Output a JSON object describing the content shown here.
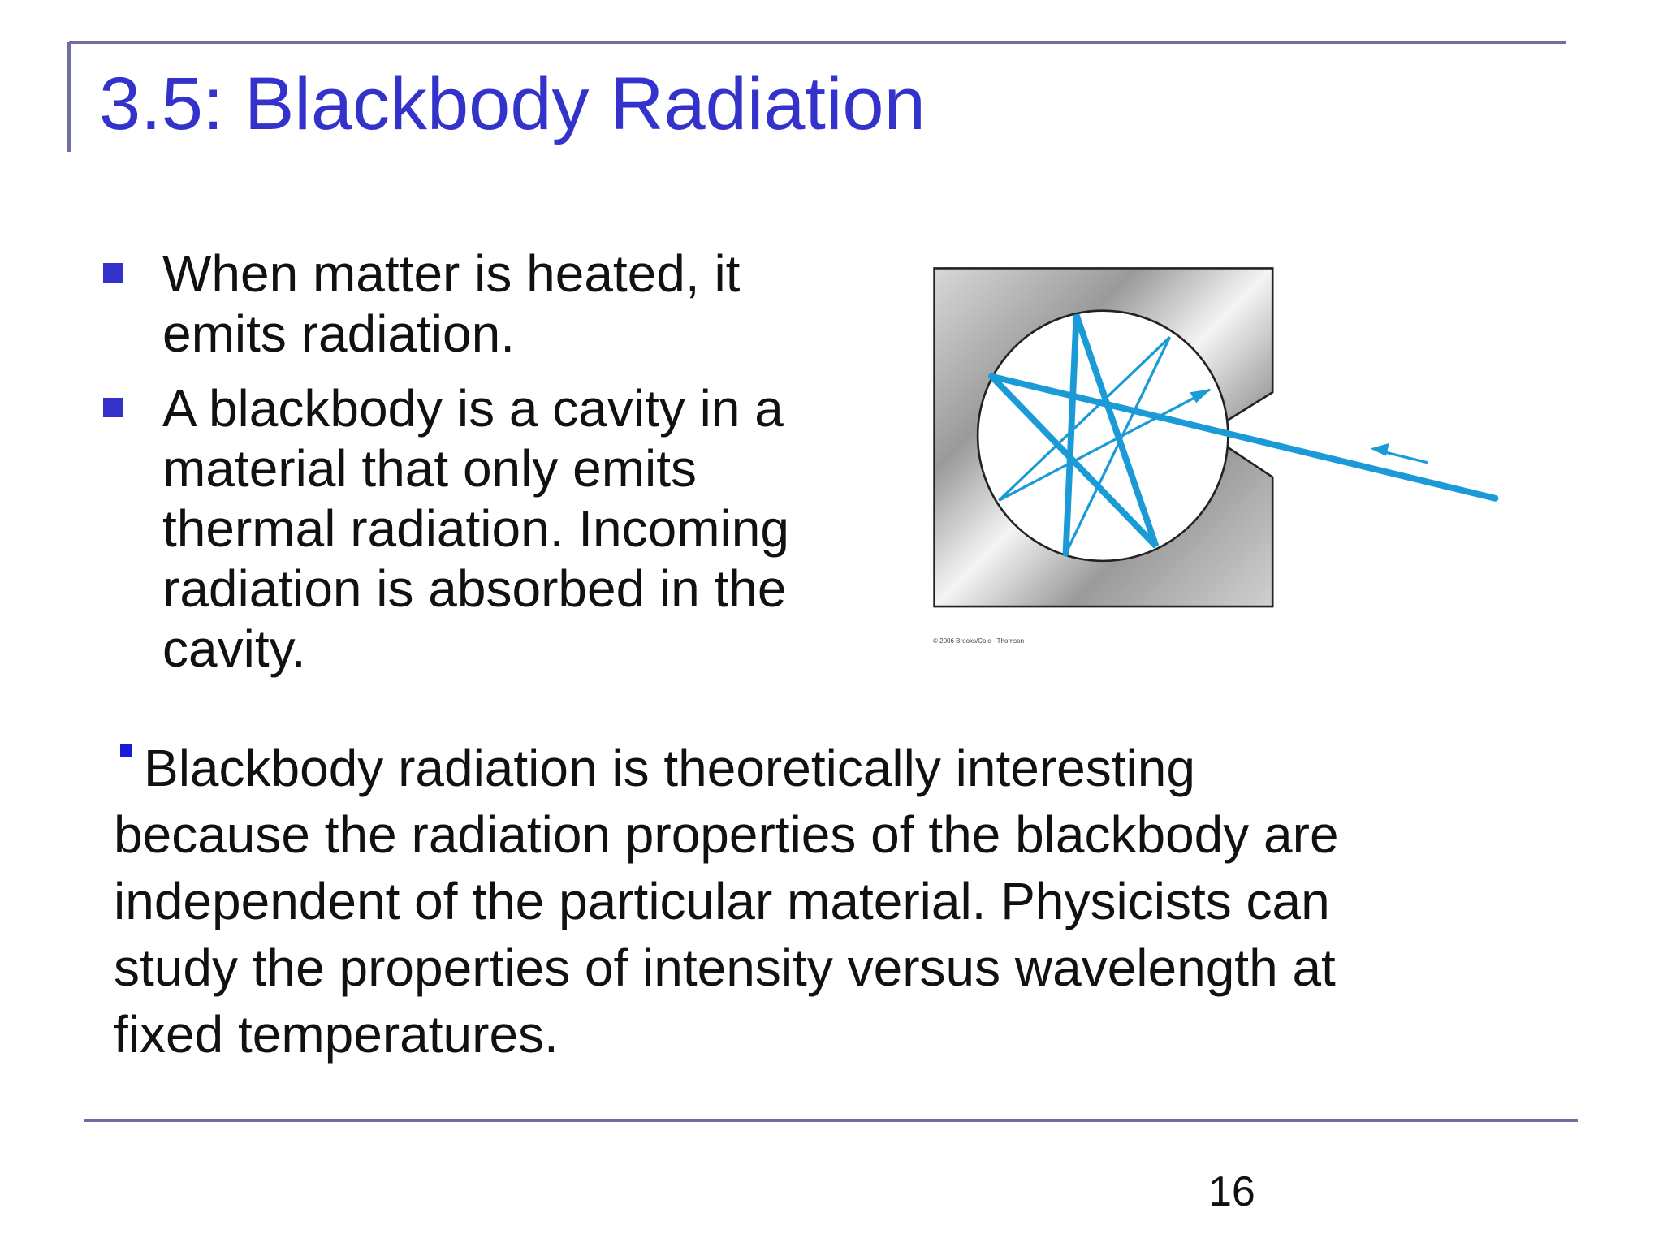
{
  "header": {
    "title": "3.5: Blackbody Radiation"
  },
  "bullets": [
    [
      "When matter is heated, it",
      "emits radiation."
    ],
    [
      "A blackbody is a cavity in a",
      "material that only emits",
      "thermal radiation. Incoming",
      "radiation is absorbed in the",
      "cavity."
    ]
  ],
  "figure": {
    "credit": "© 2006 Brooks/Cole - Thomson"
  },
  "paragraph": [
    "Blackbody radiation is theoretically interesting",
    "because the radiation properties of the blackbody are",
    "independent of the particular material. Physicists can",
    "study the properties of intensity versus wavelength at",
    "fixed temperatures."
  ],
  "footer": {
    "page_number": 16
  }
}
